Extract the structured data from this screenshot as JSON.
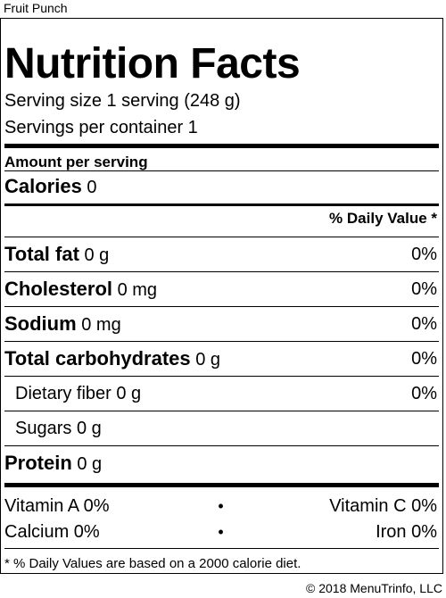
{
  "product_name": "Fruit Punch",
  "label": {
    "title": "Nutrition Facts",
    "serving_size": "Serving size 1 serving (248 g)",
    "servings_per_container": "Servings per container 1",
    "amount_per_serving": "Amount per serving",
    "calories": {
      "label": "Calories",
      "value": "0"
    },
    "dv_header": "% Daily Value *",
    "nutrients": [
      {
        "label": "Total fat",
        "amount": "0 g",
        "dv": "0%",
        "bold": true
      },
      {
        "label": "Cholesterol",
        "amount": "0 mg",
        "dv": "0%",
        "bold": true
      },
      {
        "label": "Sodium",
        "amount": "0 mg",
        "dv": "0%",
        "bold": true
      },
      {
        "label": "Total carbohydrates",
        "amount": "0 g",
        "dv": "0%",
        "bold": true
      },
      {
        "label": "Dietary fiber",
        "amount": "0 g",
        "dv": "0%",
        "bold": false
      },
      {
        "label": "Sugars",
        "amount": "0 g",
        "dv": "",
        "bold": false
      },
      {
        "label": "Protein",
        "amount": "0 g",
        "dv": "",
        "bold": true
      }
    ],
    "vitamins": [
      {
        "left": "Vitamin A 0%",
        "right": "Vitamin C 0%"
      },
      {
        "left": "Calcium 0%",
        "right": "Iron 0%"
      }
    ],
    "bullet": "•",
    "footnote": "* % Daily Values are based on a 2000 calorie diet."
  },
  "copyright": "© 2018 MenuTrinfo, LLC"
}
